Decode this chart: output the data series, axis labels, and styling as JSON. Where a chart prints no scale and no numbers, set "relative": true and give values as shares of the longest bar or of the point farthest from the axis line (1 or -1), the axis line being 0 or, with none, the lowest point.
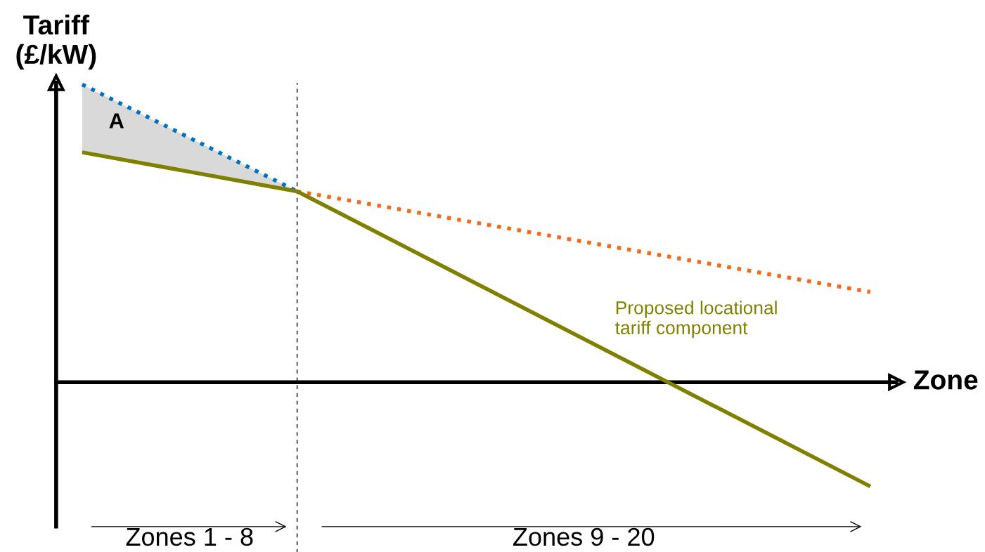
{
  "chart_data": {
    "type": "line",
    "relative": true,
    "xlabel": "Zone",
    "ylabel": "Tariff\n(£/kW)",
    "categories": [
      null,
      null,
      null,
      null,
      null,
      null,
      null,
      null,
      null,
      null,
      null,
      null
    ],
    "series": [
      {
        "color": "#0070c0",
        "line_style": "dotted",
        "values": [
          1.0,
          null,
          null,
          0.641,
          null,
          null,
          null,
          null,
          null,
          null,
          null,
          null
        ]
      },
      {
        "color": "#f26b1d",
        "line_style": "dotted",
        "values": [
          null,
          null,
          null,
          0.641,
          null,
          null,
          null,
          null,
          null,
          null,
          null,
          0.303
        ]
      },
      {
        "name": "Proposed locational\ntariff component",
        "color": "#808000",
        "line_style": "solid",
        "values": [
          0.772,
          null,
          null,
          0.641,
          null,
          null,
          null,
          null,
          null,
          null,
          null,
          -0.35
        ]
      }
    ],
    "annotations": [
      "A",
      "Zones 1 - 8",
      "Zones 9 - 20"
    ]
  }
}
